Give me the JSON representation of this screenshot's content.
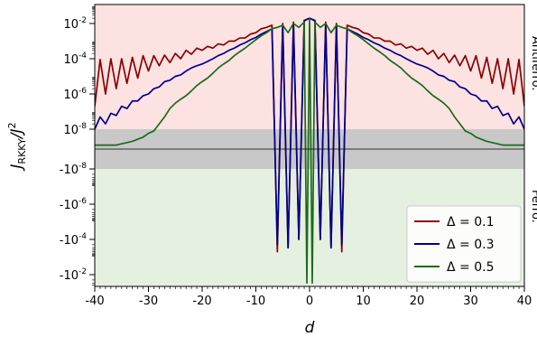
{
  "chart_data": {
    "type": "line",
    "xlabel": "d",
    "ylabel_main": "J",
    "ylabel_sub": "RKKY",
    "ylabel_tail": "/J",
    "ylabel_sup": "2",
    "xlim": [
      -40,
      40
    ],
    "y_scale": "symlog",
    "y_display_range": [
      -2.5,
      2.5
    ],
    "x_ticks": [
      {
        "v": -40,
        "label": "-40"
      },
      {
        "v": -30,
        "label": "-30"
      },
      {
        "v": -20,
        "label": "-20"
      },
      {
        "v": -10,
        "label": "-10"
      },
      {
        "v": 0,
        "label": "0"
      },
      {
        "v": 10,
        "label": "10"
      },
      {
        "v": 20,
        "label": "20"
      },
      {
        "v": 30,
        "label": "30"
      },
      {
        "v": 40,
        "label": "40"
      }
    ],
    "y_ticks": [
      {
        "label": "10",
        "exp": "-2",
        "value": 0.01
      },
      {
        "label": "10",
        "exp": "-4",
        "value": 0.0001
      },
      {
        "label": "10",
        "exp": "-6",
        "value": 1e-06
      },
      {
        "label": "10",
        "exp": "-8",
        "value": 1e-08
      },
      {
        "label": "-10",
        "exp": "-8",
        "value": -1e-08
      },
      {
        "label": "-10",
        "exp": "-6",
        "value": -1e-06
      },
      {
        "label": "-10",
        "exp": "-4",
        "value": -0.0001
      },
      {
        "label": "-10",
        "exp": "-2",
        "value": -0.01
      }
    ],
    "region_colors": {
      "positive": "#fde2e2",
      "negative": "#e6f0e1",
      "linear": "#c8c8c8"
    },
    "right_labels": [
      "Antiferro.",
      "Ferro."
    ],
    "series": [
      {
        "name": "Δ = 0.1",
        "color": "#8b0000",
        "points": [
          [
            -40,
            2e-07
          ],
          [
            -39,
            9e-05
          ],
          [
            -38,
            1e-06
          ],
          [
            -37,
            0.0001
          ],
          [
            -36,
            2e-06
          ],
          [
            -35,
            0.0001
          ],
          [
            -34,
            4e-06
          ],
          [
            -33,
            0.00012
          ],
          [
            -32,
            8e-06
          ],
          [
            -31,
            0.00015
          ],
          [
            -30,
            2e-05
          ],
          [
            -29,
            0.00015
          ],
          [
            -28,
            4e-05
          ],
          [
            -27,
            0.00016
          ],
          [
            -26,
            6e-05
          ],
          [
            -25,
            0.0002
          ],
          [
            -24,
            0.0001
          ],
          [
            -23,
            0.0003
          ],
          [
            -22,
            0.00018
          ],
          [
            -21,
            0.0004
          ],
          [
            -20,
            0.0003
          ],
          [
            -19,
            0.0005
          ],
          [
            -18,
            0.0004
          ],
          [
            -17,
            0.0007
          ],
          [
            -16,
            0.0006
          ],
          [
            -15,
            0.001
          ],
          [
            -14,
            0.001
          ],
          [
            -13,
            0.0015
          ],
          [
            -12,
            0.0015
          ],
          [
            -11,
            0.0025
          ],
          [
            -10,
            0.003
          ],
          [
            -9,
            0.005
          ],
          [
            -8,
            0.006
          ],
          [
            -7,
            0.008
          ],
          [
            -6,
            -0.0005
          ],
          [
            -5,
            0.01
          ],
          [
            -4,
            -0.0003
          ],
          [
            -3,
            0.012
          ],
          [
            -2,
            -0.0001
          ],
          [
            -1,
            0.015
          ],
          [
            0,
            0.02
          ],
          [
            1,
            0.015
          ],
          [
            2,
            -0.0001
          ],
          [
            3,
            0.012
          ],
          [
            4,
            -0.0003
          ],
          [
            5,
            0.01
          ],
          [
            6,
            -0.0005
          ],
          [
            7,
            0.008
          ],
          [
            8,
            0.006
          ],
          [
            9,
            0.005
          ],
          [
            10,
            0.003
          ],
          [
            11,
            0.0025
          ],
          [
            12,
            0.0015
          ],
          [
            13,
            0.0015
          ],
          [
            14,
            0.001
          ],
          [
            15,
            0.001
          ],
          [
            16,
            0.0006
          ],
          [
            17,
            0.0007
          ],
          [
            18,
            0.0004
          ],
          [
            19,
            0.0005
          ],
          [
            20,
            0.0003
          ],
          [
            21,
            0.0004
          ],
          [
            22,
            0.00018
          ],
          [
            23,
            0.0003
          ],
          [
            24,
            0.0001
          ],
          [
            25,
            0.0002
          ],
          [
            26,
            6e-05
          ],
          [
            27,
            0.00016
          ],
          [
            28,
            4e-05
          ],
          [
            29,
            0.00015
          ],
          [
            30,
            2e-05
          ],
          [
            31,
            0.00015
          ],
          [
            32,
            8e-06
          ],
          [
            33,
            0.00012
          ],
          [
            34,
            4e-06
          ],
          [
            35,
            0.0001
          ],
          [
            36,
            2e-06
          ],
          [
            37,
            0.0001
          ],
          [
            38,
            1e-06
          ],
          [
            39,
            9e-05
          ],
          [
            40,
            2e-07
          ]
        ]
      },
      {
        "name": "Δ = 0.3",
        "color": "#00008b",
        "points": [
          [
            -40,
            1e-08
          ],
          [
            -39,
            5e-08
          ],
          [
            -38,
            2e-08
          ],
          [
            -37,
            8e-08
          ],
          [
            -36,
            6e-08
          ],
          [
            -35,
            2e-07
          ],
          [
            -34,
            1.5e-07
          ],
          [
            -33,
            4e-07
          ],
          [
            -32,
            4e-07
          ],
          [
            -31,
            8e-07
          ],
          [
            -30,
            1e-06
          ],
          [
            -29,
            2e-06
          ],
          [
            -28,
            2.5e-06
          ],
          [
            -27,
            5e-06
          ],
          [
            -26,
            6e-06
          ],
          [
            -25,
            1e-05
          ],
          [
            -24,
            1.2e-05
          ],
          [
            -23,
            2e-05
          ],
          [
            -22,
            3e-05
          ],
          [
            -21,
            4e-05
          ],
          [
            -20,
            5e-05
          ],
          [
            -19,
            7e-05
          ],
          [
            -18,
            0.0001
          ],
          [
            -17,
            0.00015
          ],
          [
            -16,
            0.0002
          ],
          [
            -15,
            0.0003
          ],
          [
            -14,
            0.0004
          ],
          [
            -13,
            0.0006
          ],
          [
            -12,
            0.0008
          ],
          [
            -11,
            0.0012
          ],
          [
            -10,
            0.0016
          ],
          [
            -9,
            0.0025
          ],
          [
            -8,
            0.0035
          ],
          [
            -7,
            0.005
          ],
          [
            -6,
            -0.0002
          ],
          [
            -5,
            0.008
          ],
          [
            -4,
            -0.0003
          ],
          [
            -3,
            0.01
          ],
          [
            -2,
            -0.0001
          ],
          [
            -1,
            0.014
          ],
          [
            0,
            0.02
          ],
          [
            1,
            0.014
          ],
          [
            2,
            -0.0001
          ],
          [
            3,
            0.01
          ],
          [
            4,
            -0.0003
          ],
          [
            5,
            0.008
          ],
          [
            6,
            -0.0002
          ],
          [
            7,
            0.005
          ],
          [
            8,
            0.0035
          ],
          [
            9,
            0.0025
          ],
          [
            10,
            0.0016
          ],
          [
            11,
            0.0012
          ],
          [
            12,
            0.0008
          ],
          [
            13,
            0.0006
          ],
          [
            14,
            0.0004
          ],
          [
            15,
            0.0003
          ],
          [
            16,
            0.0002
          ],
          [
            17,
            0.00015
          ],
          [
            18,
            0.0001
          ],
          [
            19,
            7e-05
          ],
          [
            20,
            5e-05
          ],
          [
            21,
            4e-05
          ],
          [
            22,
            3e-05
          ],
          [
            23,
            2e-05
          ],
          [
            24,
            1.2e-05
          ],
          [
            25,
            1e-05
          ],
          [
            26,
            6e-06
          ],
          [
            27,
            5e-06
          ],
          [
            28,
            2.5e-06
          ],
          [
            29,
            2e-06
          ],
          [
            30,
            1e-06
          ],
          [
            31,
            8e-07
          ],
          [
            32,
            4e-07
          ],
          [
            33,
            4e-07
          ],
          [
            34,
            1.5e-07
          ],
          [
            35,
            2e-07
          ],
          [
            36,
            6e-08
          ],
          [
            37,
            8e-08
          ],
          [
            38,
            2e-08
          ],
          [
            39,
            5e-08
          ],
          [
            40,
            1e-08
          ]
        ]
      },
      {
        "name": "Δ = 0.5",
        "color": "#1a6b1a",
        "points": [
          [
            -40,
            1e-10
          ],
          [
            -36,
            1e-10
          ],
          [
            -33,
            3e-10
          ],
          [
            -31,
            1e-09
          ],
          [
            -30,
            3e-09
          ],
          [
            -29,
            6e-09
          ],
          [
            -28,
            2e-08
          ],
          [
            -27,
            5e-08
          ],
          [
            -26,
            1.5e-07
          ],
          [
            -25,
            3e-07
          ],
          [
            -24,
            5e-07
          ],
          [
            -23,
            8e-07
          ],
          [
            -22,
            1.5e-06
          ],
          [
            -21,
            3e-06
          ],
          [
            -20,
            5e-06
          ],
          [
            -19,
            8e-06
          ],
          [
            -18,
            1.5e-05
          ],
          [
            -17,
            3e-05
          ],
          [
            -16,
            5e-05
          ],
          [
            -15,
            8e-05
          ],
          [
            -14,
            0.00015
          ],
          [
            -13,
            0.00025
          ],
          [
            -12,
            0.0004
          ],
          [
            -11,
            0.0007
          ],
          [
            -10,
            0.0012
          ],
          [
            -9,
            0.002
          ],
          [
            -8,
            0.003
          ],
          [
            -7,
            0.005
          ],
          [
            -6,
            0.006
          ],
          [
            -5,
            0.008
          ],
          [
            -4,
            0.003
          ],
          [
            -3,
            0.01
          ],
          [
            -2,
            0.006
          ],
          [
            -1,
            0.012
          ],
          [
            -0.5,
            -0.03
          ],
          [
            0,
            0.02
          ],
          [
            0.5,
            -0.03
          ],
          [
            1,
            0.012
          ],
          [
            2,
            0.006
          ],
          [
            3,
            0.01
          ],
          [
            4,
            0.003
          ],
          [
            5,
            0.008
          ],
          [
            6,
            0.006
          ],
          [
            7,
            0.005
          ],
          [
            8,
            0.003
          ],
          [
            9,
            0.002
          ],
          [
            10,
            0.0012
          ],
          [
            11,
            0.0007
          ],
          [
            12,
            0.0004
          ],
          [
            13,
            0.00025
          ],
          [
            14,
            0.00015
          ],
          [
            15,
            8e-05
          ],
          [
            16,
            5e-05
          ],
          [
            17,
            3e-05
          ],
          [
            18,
            1.5e-05
          ],
          [
            19,
            8e-06
          ],
          [
            20,
            5e-06
          ],
          [
            21,
            3e-06
          ],
          [
            22,
            1.5e-06
          ],
          [
            23,
            8e-07
          ],
          [
            24,
            5e-07
          ],
          [
            25,
            3e-07
          ],
          [
            26,
            1.5e-07
          ],
          [
            27,
            5e-08
          ],
          [
            28,
            2e-08
          ],
          [
            29,
            6e-09
          ],
          [
            30,
            3e-09
          ],
          [
            31,
            1e-09
          ],
          [
            33,
            3e-10
          ],
          [
            36,
            1e-10
          ],
          [
            40,
            1e-10
          ]
        ]
      }
    ],
    "legend": {
      "position": "lower-right"
    }
  }
}
